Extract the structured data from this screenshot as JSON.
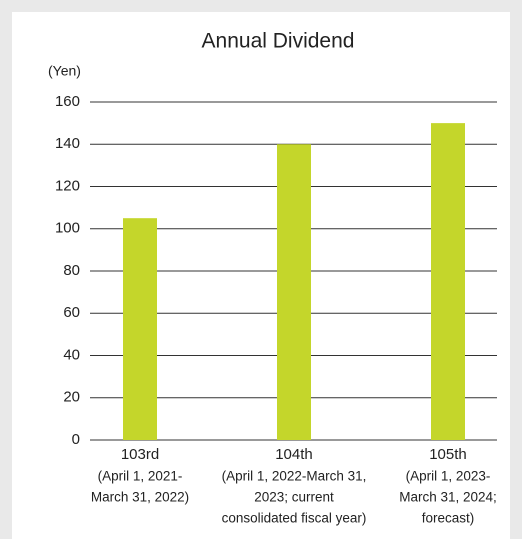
{
  "chart_data": {
    "type": "bar",
    "title": "Annual Dividend",
    "y_label": "(Yen)",
    "categories": [
      "103rd",
      "104th",
      "105th"
    ],
    "category_details": [
      [
        "(April 1, 2021-",
        "March 31, 2022)"
      ],
      [
        "(April 1, 2022-March 31,",
        "2023; current",
        "consolidated fiscal year)"
      ],
      [
        "(April 1, 2023-",
        "March 31, 2024;",
        "forecast)"
      ]
    ],
    "values": [
      105,
      140,
      150
    ],
    "color": "#c4d62b",
    "ylim": [
      0,
      160
    ],
    "yticks": [
      0,
      20,
      40,
      60,
      80,
      100,
      120,
      140,
      160
    ],
    "grid": true
  }
}
